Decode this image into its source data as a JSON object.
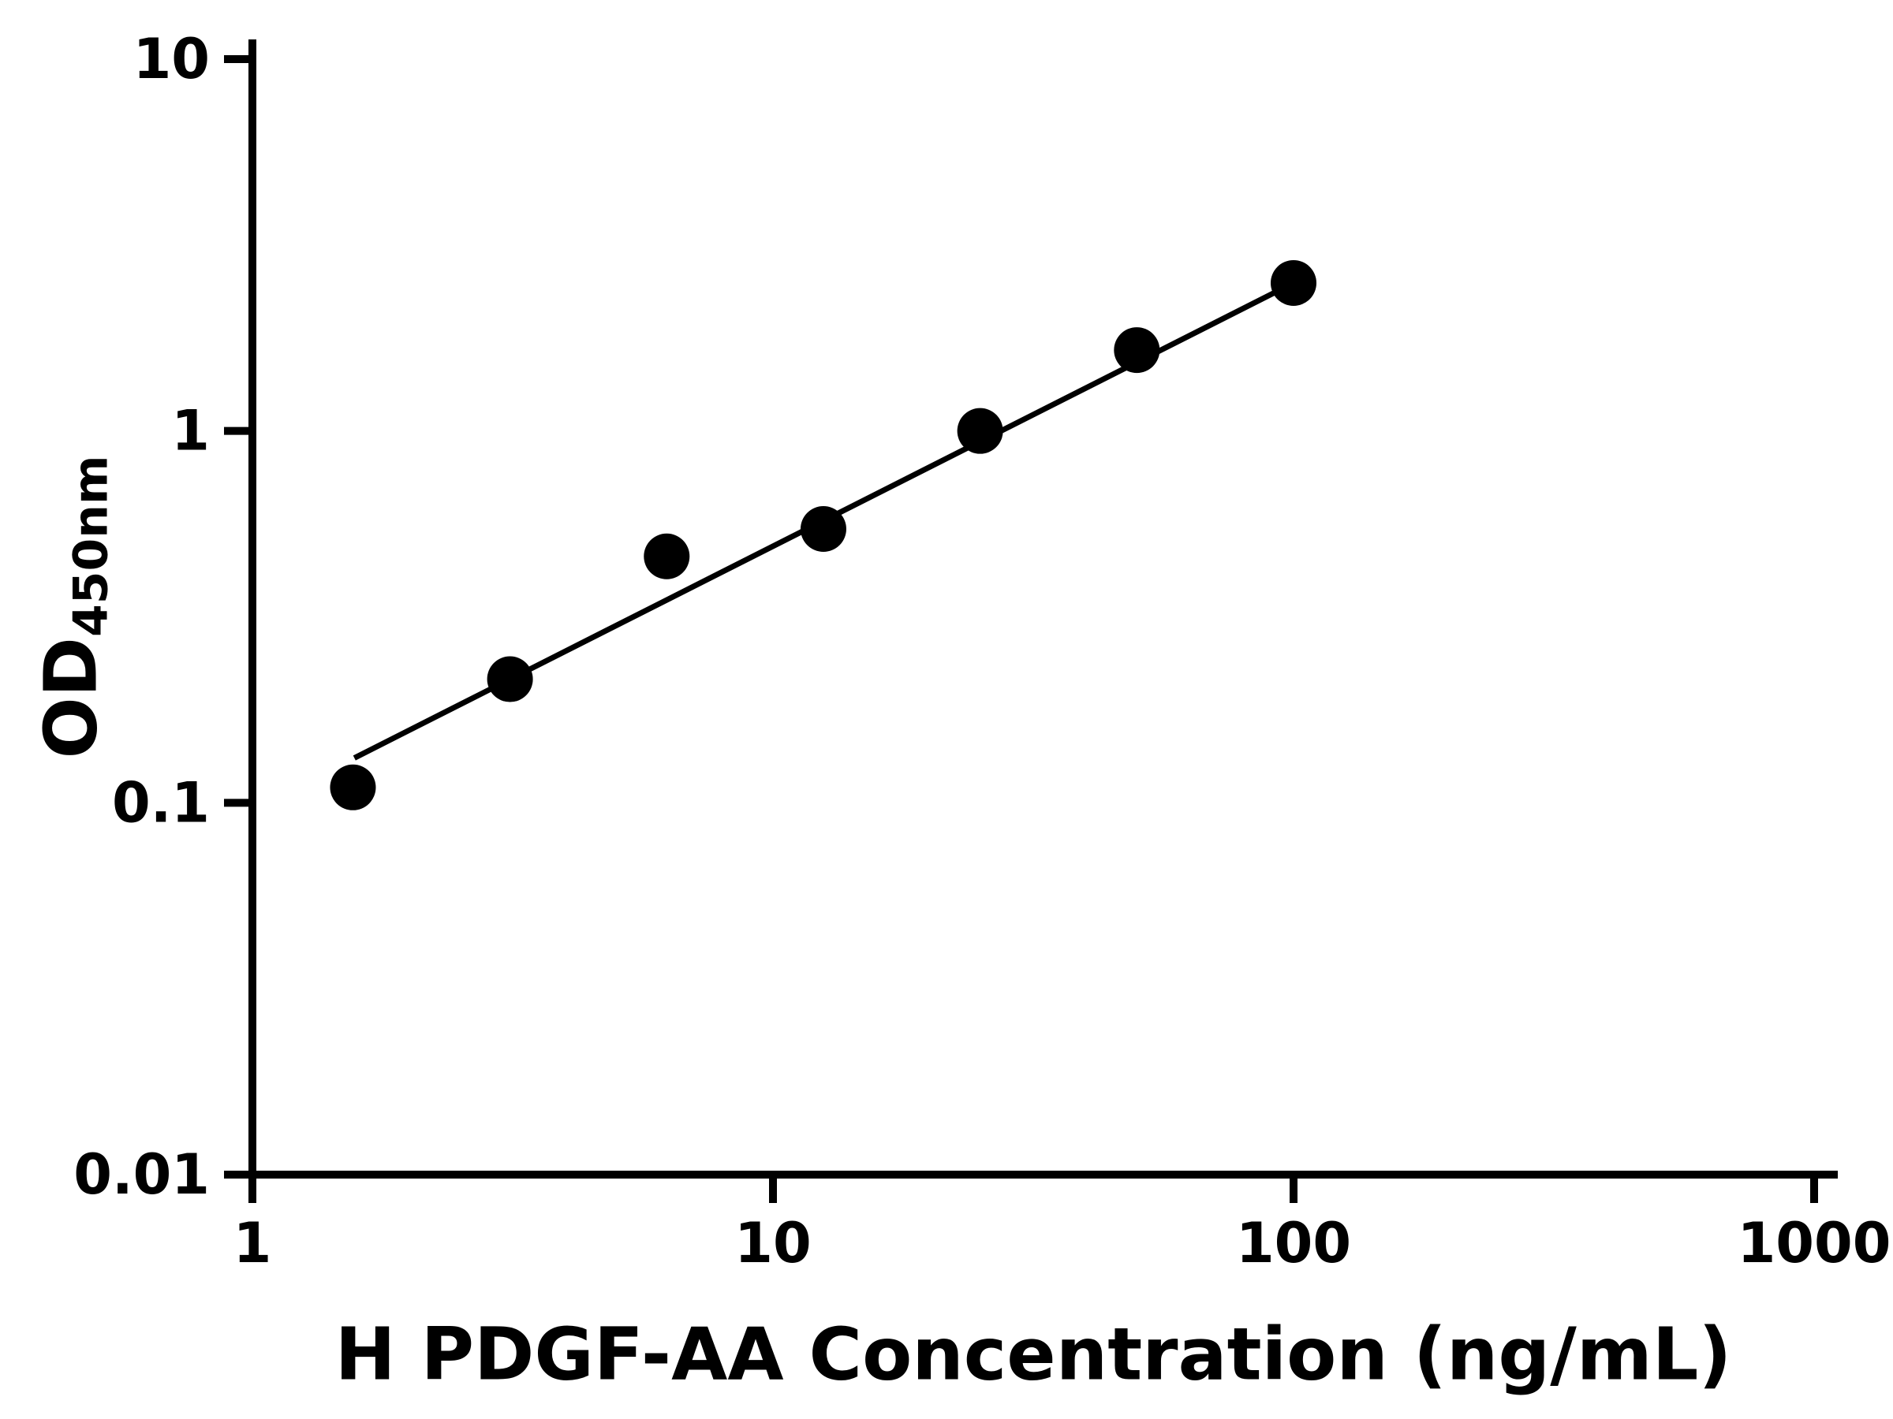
{
  "chart_data": {
    "type": "scatter",
    "title": "",
    "xlabel": "H PDGF-AA Concentration (ng/mL)",
    "ylabel": "OD",
    "ylabel_subscript": "450nm",
    "x_scale": "log",
    "y_scale": "log",
    "xlim": [
      1,
      1000
    ],
    "ylim": [
      0.01,
      10
    ],
    "grid": false,
    "legend": "none",
    "x_ticks": [
      1,
      10,
      100,
      1000
    ],
    "x_tick_labels": [
      "1",
      "10",
      "100",
      "1000"
    ],
    "y_ticks": [
      0.01,
      0.1,
      1,
      10
    ],
    "y_tick_labels": [
      "0.01",
      "0.1",
      "1",
      "10"
    ],
    "series": [
      {
        "name": "standard-curve-points",
        "points": [
          {
            "x": 1.56,
            "y": 0.11
          },
          {
            "x": 3.125,
            "y": 0.215
          },
          {
            "x": 6.25,
            "y": 0.46
          },
          {
            "x": 12.5,
            "y": 0.545
          },
          {
            "x": 25,
            "y": 1.0
          },
          {
            "x": 50,
            "y": 1.65
          },
          {
            "x": 100,
            "y": 2.5
          }
        ]
      }
    ],
    "fit_line": {
      "x1": 1.57,
      "y1": 0.132,
      "x2": 100,
      "y2": 2.5
    },
    "marker_color": "#000000",
    "line_color": "#000000",
    "axis_color": "#000000",
    "background_color": "#ffffff"
  }
}
